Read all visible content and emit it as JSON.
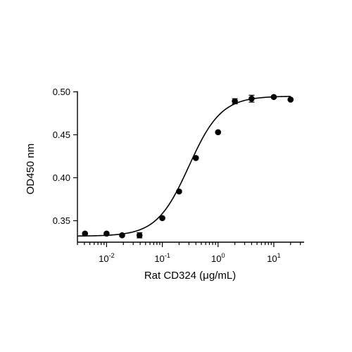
{
  "chart_data": {
    "type": "scatter",
    "xlabel": "Rat CD324 (μg/mL)",
    "ylabel": "OD450 nm",
    "xscale": "log",
    "xlim": [
      0.003,
      35
    ],
    "ylim": [
      0.325,
      0.502
    ],
    "y_ticks": [
      "0.35",
      "0.40",
      "0.45",
      "0.50"
    ],
    "x_ticks": [
      {
        "base": "10",
        "exp": "-2"
      },
      {
        "base": "10",
        "exp": "-1"
      },
      {
        "base": "10",
        "exp": "0"
      },
      {
        "base": "10",
        "exp": "1"
      }
    ],
    "grid": false,
    "points": [
      {
        "x": 0.0041,
        "y": 0.335,
        "err": 0.001
      },
      {
        "x": 0.01,
        "y": 0.335,
        "err": 0.001
      },
      {
        "x": 0.019,
        "y": 0.333,
        "err": 0.001
      },
      {
        "x": 0.039,
        "y": 0.333,
        "err": 0.003
      },
      {
        "x": 0.1,
        "y": 0.353,
        "err": 0.001
      },
      {
        "x": 0.2,
        "y": 0.384,
        "err": 0.001
      },
      {
        "x": 0.4,
        "y": 0.423,
        "err": 0.001
      },
      {
        "x": 1.0,
        "y": 0.453,
        "err": 0.001
      },
      {
        "x": 2.0,
        "y": 0.489,
        "err": 0.003
      },
      {
        "x": 4.0,
        "y": 0.492,
        "err": 0.004
      },
      {
        "x": 10.0,
        "y": 0.494,
        "err": 0.001
      },
      {
        "x": 20.0,
        "y": 0.491,
        "err": 0.001
      }
    ],
    "fit": {
      "model": "4PL",
      "bottom": 0.332,
      "top": 0.495,
      "ec50": 0.3,
      "hill": 1.5
    }
  }
}
